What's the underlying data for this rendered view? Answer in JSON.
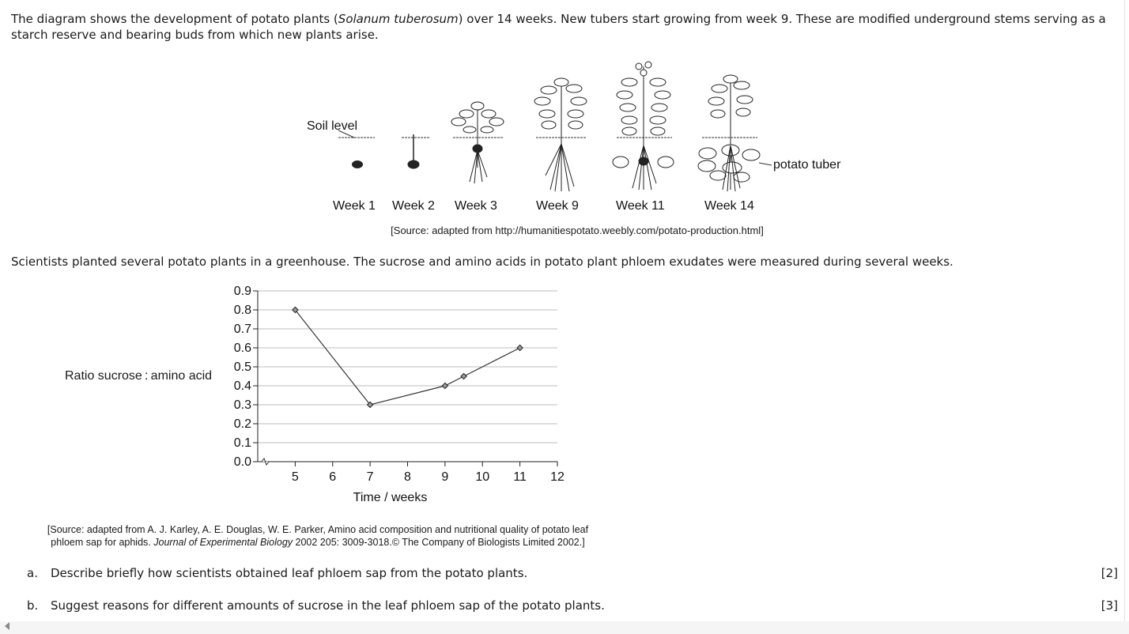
{
  "intro": {
    "text_before": "The diagram shows the development of potato plants (",
    "species": "Solanum tuberosum",
    "text_after": ") over 14 weeks. New tubers start growing from week 9. These are modified underground stems serving as a starch reserve and bearing buds from which new plants arise."
  },
  "diagram": {
    "soil_label": "Soil level",
    "tuber_label": "potato tuber",
    "weeks": [
      "Week 1",
      "Week 2",
      "Week 3",
      "Week 9",
      "Week 11",
      "Week 14"
    ],
    "source": "[Source: adapted from http://humanitiespotato.weebly.com/potato-production.html]"
  },
  "paragraph2": "Scientists planted several potato plants in a greenhouse. The sucrose and amino acids in potato plant phloem exudates were measured during several weeks.",
  "chart_data": {
    "type": "line",
    "xlabel": "Time / weeks",
    "ylabel": "Ratio sucrose : amino acid",
    "xlim": [
      4,
      12
    ],
    "ylim": [
      0,
      0.9
    ],
    "x_ticks": [
      5,
      6,
      7,
      8,
      9,
      10,
      11,
      12
    ],
    "y_ticks": [
      "0.0",
      "0.1",
      "0.2",
      "0.3",
      "0.4",
      "0.5",
      "0.6",
      "0.7",
      "0.8",
      "0.9"
    ],
    "grid": "horizontal",
    "axis_break": true,
    "series": [
      {
        "x": [
          5,
          7,
          9,
          9.5,
          11
        ],
        "y": [
          0.8,
          0.3,
          0.4,
          0.45,
          0.6
        ],
        "marker": "diamond",
        "color": "#333333"
      }
    ]
  },
  "source2": {
    "line1": "[Source: adapted from A. J. Karley, A. E. Douglas, W. E. Parker, Amino acid composition and nutritional quality of potato leaf",
    "line2_before": "phloem sap for aphids. ",
    "journal": "Journal of Experimental Biology",
    "line2_after": " 2002 205: 3009-3018.© The Company of Biologists Limited 2002.]"
  },
  "questions": [
    {
      "letter": "a.",
      "text": "Describe briefly how scientists obtained leaf phloem sap from the potato plants.",
      "marks": "[2]"
    },
    {
      "letter": "b.",
      "text": "Suggest reasons for different amounts of sucrose in the leaf phloem sap of the potato plants.",
      "marks": "[3]"
    }
  ]
}
